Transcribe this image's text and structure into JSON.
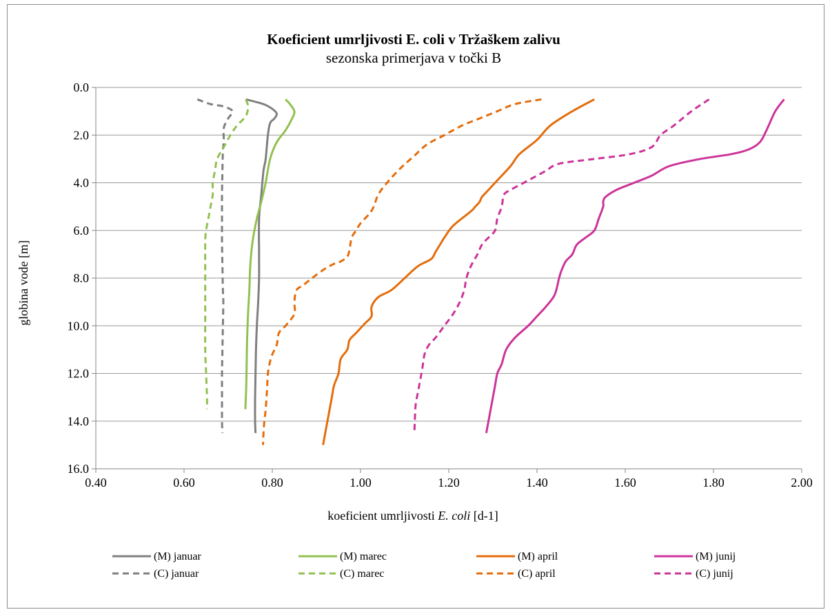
{
  "chart_data": {
    "type": "line",
    "title": "Koeficient umrljivosti E. coli v Tržaškem zalivu",
    "subtitle": "sezonska primerjava v točki B",
    "xlabel_parts": [
      "koeficient umrljivosti ",
      "E. coli",
      " [d-1]"
    ],
    "ylabel": "globina vode [m]",
    "xlim": [
      0.4,
      2.0
    ],
    "ylim": [
      0.0,
      16.0
    ],
    "y_inverted": true,
    "x_ticks": [
      0.4,
      0.6,
      0.8,
      1.0,
      1.2,
      1.4,
      1.6,
      1.8,
      2.0
    ],
    "x_tick_labels": [
      "0.40",
      "0.60",
      "0.80",
      "1.00",
      "1.20",
      "1.40",
      "1.60",
      "1.80",
      "2.00"
    ],
    "y_ticks": [
      0,
      2,
      4,
      6,
      8,
      10,
      12,
      14,
      16
    ],
    "y_tick_labels": [
      "0.0",
      "2.0",
      "4.0",
      "6.0",
      "8.0",
      "10.0",
      "12.0",
      "14.0",
      "16.0"
    ],
    "grid": "horizontal",
    "legend_position": "bottom",
    "series": [
      {
        "name": "(M) januar",
        "color": "#7f7f7f",
        "dash": "solid",
        "points": [
          [
            0.74,
            0.5
          ],
          [
            0.78,
            0.7
          ],
          [
            0.8,
            0.9
          ],
          [
            0.81,
            1.1
          ],
          [
            0.805,
            1.3
          ],
          [
            0.795,
            1.5
          ],
          [
            0.79,
            2.0
          ],
          [
            0.785,
            3.0
          ],
          [
            0.78,
            3.5
          ],
          [
            0.775,
            4.5
          ],
          [
            0.77,
            5.5
          ],
          [
            0.77,
            7.0
          ],
          [
            0.77,
            8.0
          ],
          [
            0.768,
            9.0
          ],
          [
            0.765,
            10.0
          ],
          [
            0.763,
            11.0
          ],
          [
            0.762,
            12.0
          ],
          [
            0.761,
            13.0
          ],
          [
            0.761,
            14.0
          ],
          [
            0.762,
            14.5
          ]
        ]
      },
      {
        "name": "(M) marec",
        "color": "#92c050",
        "dash": "solid",
        "points": [
          [
            0.83,
            0.5
          ],
          [
            0.84,
            0.7
          ],
          [
            0.85,
            1.0
          ],
          [
            0.845,
            1.3
          ],
          [
            0.83,
            1.8
          ],
          [
            0.81,
            2.3
          ],
          [
            0.795,
            3.0
          ],
          [
            0.785,
            4.0
          ],
          [
            0.775,
            4.8
          ],
          [
            0.765,
            5.5
          ],
          [
            0.755,
            6.5
          ],
          [
            0.75,
            7.5
          ],
          [
            0.748,
            8.5
          ],
          [
            0.745,
            9.5
          ],
          [
            0.743,
            10.5
          ],
          [
            0.742,
            11.5
          ],
          [
            0.741,
            12.5
          ],
          [
            0.74,
            13.0
          ],
          [
            0.739,
            13.5
          ]
        ]
      },
      {
        "name": "(M) april",
        "color": "#e46c0a",
        "dash": "solid",
        "points": [
          [
            1.53,
            0.5
          ],
          [
            1.48,
            1.0
          ],
          [
            1.43,
            1.6
          ],
          [
            1.4,
            2.2
          ],
          [
            1.36,
            2.8
          ],
          [
            1.34,
            3.3
          ],
          [
            1.31,
            3.9
          ],
          [
            1.29,
            4.3
          ],
          [
            1.275,
            4.6
          ],
          [
            1.27,
            4.8
          ],
          [
            1.26,
            5.0
          ],
          [
            1.25,
            5.2
          ],
          [
            1.21,
            5.8
          ],
          [
            1.19,
            6.3
          ],
          [
            1.18,
            6.6
          ],
          [
            1.17,
            6.9
          ],
          [
            1.16,
            7.2
          ],
          [
            1.13,
            7.5
          ],
          [
            1.1,
            8.0
          ],
          [
            1.07,
            8.5
          ],
          [
            1.04,
            8.8
          ],
          [
            1.025,
            9.2
          ],
          [
            1.025,
            9.6
          ],
          [
            1.01,
            9.9
          ],
          [
            0.99,
            10.3
          ],
          [
            0.975,
            10.6
          ],
          [
            0.97,
            11.0
          ],
          [
            0.955,
            11.4
          ],
          [
            0.95,
            12.0
          ],
          [
            0.94,
            12.5
          ],
          [
            0.935,
            13.0
          ],
          [
            0.93,
            13.5
          ],
          [
            0.925,
            14.0
          ],
          [
            0.92,
            14.5
          ],
          [
            0.915,
            15.0
          ]
        ]
      },
      {
        "name": "(M) junij",
        "color": "#cc3399",
        "dash": "solid",
        "points": [
          [
            1.96,
            0.5
          ],
          [
            1.94,
            1.0
          ],
          [
            1.92,
            1.8
          ],
          [
            1.905,
            2.3
          ],
          [
            1.88,
            2.6
          ],
          [
            1.84,
            2.8
          ],
          [
            1.77,
            3.0
          ],
          [
            1.7,
            3.3
          ],
          [
            1.66,
            3.7
          ],
          [
            1.62,
            4.0
          ],
          [
            1.58,
            4.3
          ],
          [
            1.555,
            4.6
          ],
          [
            1.55,
            4.8
          ],
          [
            1.55,
            5.0
          ],
          [
            1.54,
            5.5
          ],
          [
            1.53,
            6.0
          ],
          [
            1.51,
            6.3
          ],
          [
            1.49,
            6.6
          ],
          [
            1.48,
            7.0
          ],
          [
            1.465,
            7.3
          ],
          [
            1.455,
            7.7
          ],
          [
            1.45,
            8.0
          ],
          [
            1.44,
            8.7
          ],
          [
            1.42,
            9.2
          ],
          [
            1.4,
            9.6
          ],
          [
            1.38,
            10.0
          ],
          [
            1.35,
            10.5
          ],
          [
            1.33,
            11.0
          ],
          [
            1.32,
            11.6
          ],
          [
            1.31,
            12.0
          ],
          [
            1.305,
            12.5
          ],
          [
            1.3,
            13.0
          ],
          [
            1.295,
            13.5
          ],
          [
            1.29,
            14.0
          ],
          [
            1.285,
            14.5
          ]
        ]
      },
      {
        "name": "(C) januar",
        "color": "#7f7f7f",
        "dash": "dash",
        "points": [
          [
            0.63,
            0.5
          ],
          [
            0.66,
            0.7
          ],
          [
            0.69,
            0.8
          ],
          [
            0.71,
            1.0
          ],
          [
            0.7,
            1.3
          ],
          [
            0.69,
            1.7
          ],
          [
            0.69,
            2.2
          ],
          [
            0.688,
            2.7
          ],
          [
            0.687,
            3.5
          ],
          [
            0.686,
            4.5
          ],
          [
            0.686,
            5.5
          ],
          [
            0.686,
            6.5
          ],
          [
            0.687,
            7.5
          ],
          [
            0.688,
            8.5
          ],
          [
            0.689,
            9.0
          ],
          [
            0.688,
            10.0
          ],
          [
            0.687,
            11.0
          ],
          [
            0.686,
            12.0
          ],
          [
            0.686,
            13.0
          ],
          [
            0.686,
            14.0
          ],
          [
            0.687,
            14.5
          ]
        ]
      },
      {
        "name": "(C) marec",
        "color": "#92c050",
        "dash": "dash",
        "points": [
          [
            0.74,
            0.5
          ],
          [
            0.745,
            0.8
          ],
          [
            0.74,
            1.2
          ],
          [
            0.72,
            1.6
          ],
          [
            0.705,
            2.0
          ],
          [
            0.69,
            2.5
          ],
          [
            0.675,
            3.0
          ],
          [
            0.67,
            3.5
          ],
          [
            0.665,
            4.0
          ],
          [
            0.665,
            4.5
          ],
          [
            0.66,
            5.0
          ],
          [
            0.655,
            5.5
          ],
          [
            0.65,
            6.0
          ],
          [
            0.648,
            6.5
          ],
          [
            0.648,
            8.0
          ],
          [
            0.648,
            9.5
          ],
          [
            0.648,
            11.0
          ],
          [
            0.65,
            12.0
          ],
          [
            0.652,
            13.0
          ],
          [
            0.652,
            13.5
          ]
        ]
      },
      {
        "name": "(C) april",
        "color": "#e46c0a",
        "dash": "dash",
        "points": [
          [
            1.41,
            0.5
          ],
          [
            1.35,
            0.7
          ],
          [
            1.31,
            1.0
          ],
          [
            1.27,
            1.3
          ],
          [
            1.23,
            1.6
          ],
          [
            1.19,
            2.0
          ],
          [
            1.15,
            2.4
          ],
          [
            1.12,
            2.9
          ],
          [
            1.09,
            3.4
          ],
          [
            1.06,
            4.0
          ],
          [
            1.04,
            4.5
          ],
          [
            1.03,
            5.0
          ],
          [
            1.02,
            5.3
          ],
          [
            1.0,
            5.7
          ],
          [
            0.99,
            6.0
          ],
          [
            0.98,
            6.3
          ],
          [
            0.975,
            6.8
          ],
          [
            0.97,
            7.1
          ],
          [
            0.955,
            7.3
          ],
          [
            0.94,
            7.4
          ],
          [
            0.92,
            7.6
          ],
          [
            0.89,
            8.0
          ],
          [
            0.87,
            8.3
          ],
          [
            0.855,
            8.5
          ],
          [
            0.85,
            9.0
          ],
          [
            0.85,
            9.5
          ],
          [
            0.83,
            10.0
          ],
          [
            0.815,
            10.3
          ],
          [
            0.81,
            10.8
          ],
          [
            0.8,
            11.2
          ],
          [
            0.795,
            11.5
          ],
          [
            0.79,
            12.0
          ],
          [
            0.788,
            12.7
          ],
          [
            0.785,
            13.5
          ],
          [
            0.782,
            14.0
          ],
          [
            0.78,
            14.5
          ],
          [
            0.779,
            15.0
          ]
        ]
      },
      {
        "name": "(C) junij",
        "color": "#cc3399",
        "dash": "dash",
        "points": [
          [
            1.79,
            0.5
          ],
          [
            1.75,
            1.0
          ],
          [
            1.71,
            1.6
          ],
          [
            1.68,
            2.0
          ],
          [
            1.66,
            2.5
          ],
          [
            1.61,
            2.8
          ],
          [
            1.53,
            3.0
          ],
          [
            1.45,
            3.2
          ],
          [
            1.42,
            3.5
          ],
          [
            1.39,
            3.8
          ],
          [
            1.37,
            4.0
          ],
          [
            1.34,
            4.3
          ],
          [
            1.325,
            4.5
          ],
          [
            1.32,
            5.0
          ],
          [
            1.31,
            5.5
          ],
          [
            1.305,
            6.0
          ],
          [
            1.29,
            6.3
          ],
          [
            1.275,
            6.6
          ],
          [
            1.265,
            7.0
          ],
          [
            1.25,
            7.5
          ],
          [
            1.24,
            8.0
          ],
          [
            1.235,
            8.5
          ],
          [
            1.225,
            9.0
          ],
          [
            1.21,
            9.5
          ],
          [
            1.19,
            10.0
          ],
          [
            1.17,
            10.5
          ],
          [
            1.155,
            10.8
          ],
          [
            1.145,
            11.2
          ],
          [
            1.14,
            11.8
          ],
          [
            1.135,
            12.3
          ],
          [
            1.13,
            12.8
          ],
          [
            1.125,
            13.3
          ],
          [
            1.123,
            14.0
          ],
          [
            1.122,
            14.5
          ]
        ]
      }
    ]
  }
}
